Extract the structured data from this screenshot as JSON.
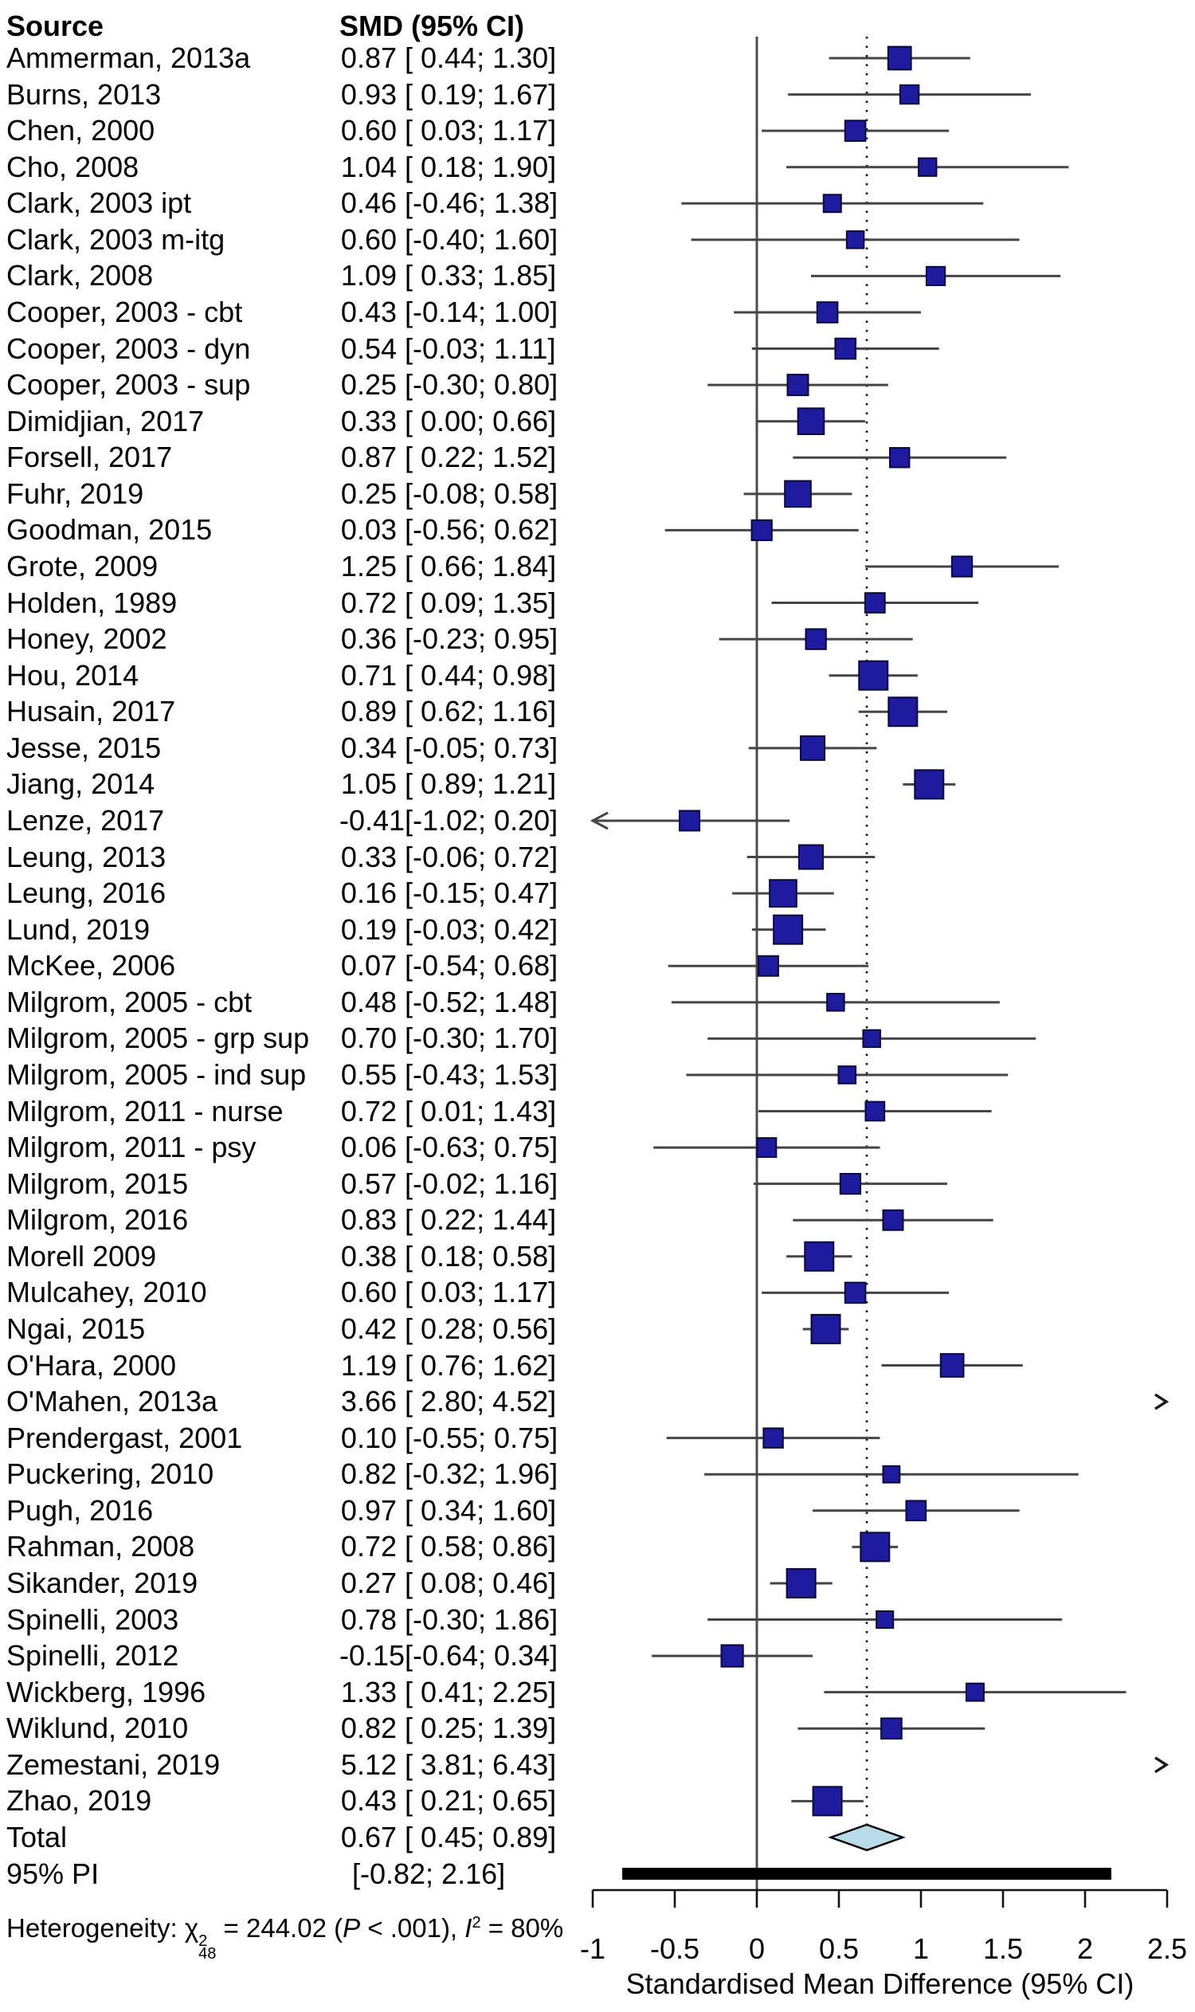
{
  "header": {
    "source": "Source",
    "smd": "SMD (95% CI)"
  },
  "heterogeneity": {
    "prefix": "Heterogeneity: ",
    "chi": "χ",
    "chi_sup": "2",
    "chi_sub": "48",
    "mid": " = 244.02 (",
    "p": "P",
    "p_tail": " < .001), ",
    "i": "I",
    "i_sup": "2",
    "i_tail": " = 80%"
  },
  "colors": {
    "background": "#ffffff",
    "square": "#1e1b9e",
    "square_border": "#0a0a3a",
    "ci_line": "#454545",
    "zero_line": "#4d4d4d",
    "dotted_line": "#111111",
    "diamond_fill": "#b8dbe9",
    "diamond_border": "#000000",
    "pi_bar": "#000000",
    "axis": "#111111",
    "text": "#000000"
  },
  "chart_data": {
    "type": "forest",
    "xlabel": "Standardised Mean Difference (95% CI)",
    "x_ticks": [
      -1,
      -0.5,
      0,
      0.5,
      1,
      1.5,
      2,
      2.5
    ],
    "x_tick_labels": [
      "-1",
      "-0.5",
      "0",
      "0.5",
      "1",
      "1.5",
      "2",
      "2.5"
    ],
    "x_range": [
      -1,
      2.5
    ],
    "dotted_reference": 0.67,
    "studies": [
      {
        "name": "Ammerman, 2013a",
        "est": 0.87,
        "lo": 0.44,
        "hi": 1.3
      },
      {
        "name": "Burns, 2013",
        "est": 0.93,
        "lo": 0.19,
        "hi": 1.67
      },
      {
        "name": "Chen, 2000",
        "est": 0.6,
        "lo": 0.03,
        "hi": 1.17
      },
      {
        "name": "Cho, 2008",
        "est": 1.04,
        "lo": 0.18,
        "hi": 1.9
      },
      {
        "name": "Clark, 2003 ipt",
        "est": 0.46,
        "lo": -0.46,
        "hi": 1.38
      },
      {
        "name": "Clark, 2003 m-itg",
        "est": 0.6,
        "lo": -0.4,
        "hi": 1.6
      },
      {
        "name": "Clark, 2008",
        "est": 1.09,
        "lo": 0.33,
        "hi": 1.85
      },
      {
        "name": "Cooper, 2003 - cbt",
        "est": 0.43,
        "lo": -0.14,
        "hi": 1.0
      },
      {
        "name": "Cooper, 2003 - dyn",
        "est": 0.54,
        "lo": -0.03,
        "hi": 1.11
      },
      {
        "name": "Cooper, 2003 - sup",
        "est": 0.25,
        "lo": -0.3,
        "hi": 0.8
      },
      {
        "name": "Dimidjian, 2017",
        "est": 0.33,
        "lo": 0.0,
        "hi": 0.66
      },
      {
        "name": "Forsell, 2017",
        "est": 0.87,
        "lo": 0.22,
        "hi": 1.52
      },
      {
        "name": "Fuhr, 2019",
        "est": 0.25,
        "lo": -0.08,
        "hi": 0.58
      },
      {
        "name": "Goodman, 2015",
        "est": 0.03,
        "lo": -0.56,
        "hi": 0.62
      },
      {
        "name": "Grote, 2009",
        "est": 1.25,
        "lo": 0.66,
        "hi": 1.84
      },
      {
        "name": "Holden, 1989",
        "est": 0.72,
        "lo": 0.09,
        "hi": 1.35
      },
      {
        "name": "Honey, 2002",
        "est": 0.36,
        "lo": -0.23,
        "hi": 0.95
      },
      {
        "name": "Hou, 2014",
        "est": 0.71,
        "lo": 0.44,
        "hi": 0.98
      },
      {
        "name": "Husain, 2017",
        "est": 0.89,
        "lo": 0.62,
        "hi": 1.16
      },
      {
        "name": "Jesse, 2015",
        "est": 0.34,
        "lo": -0.05,
        "hi": 0.73
      },
      {
        "name": "Jiang, 2014",
        "est": 1.05,
        "lo": 0.89,
        "hi": 1.21
      },
      {
        "name": "Lenze, 2017",
        "est": -0.41,
        "lo": -1.02,
        "hi": 0.2
      },
      {
        "name": "Leung, 2013",
        "est": 0.33,
        "lo": -0.06,
        "hi": 0.72
      },
      {
        "name": "Leung, 2016",
        "est": 0.16,
        "lo": -0.15,
        "hi": 0.47
      },
      {
        "name": "Lund, 2019",
        "est": 0.19,
        "lo": -0.03,
        "hi": 0.42
      },
      {
        "name": "McKee, 2006",
        "est": 0.07,
        "lo": -0.54,
        "hi": 0.68
      },
      {
        "name": "Milgrom, 2005 - cbt",
        "est": 0.48,
        "lo": -0.52,
        "hi": 1.48
      },
      {
        "name": "Milgrom, 2005 - grp sup",
        "est": 0.7,
        "lo": -0.3,
        "hi": 1.7
      },
      {
        "name": "Milgrom, 2005 - ind sup",
        "est": 0.55,
        "lo": -0.43,
        "hi": 1.53
      },
      {
        "name": "Milgrom, 2011 - nurse",
        "est": 0.72,
        "lo": 0.01,
        "hi": 1.43
      },
      {
        "name": "Milgrom, 2011 - psy",
        "est": 0.06,
        "lo": -0.63,
        "hi": 0.75
      },
      {
        "name": "Milgrom, 2015",
        "est": 0.57,
        "lo": -0.02,
        "hi": 1.16
      },
      {
        "name": "Milgrom, 2016",
        "est": 0.83,
        "lo": 0.22,
        "hi": 1.44
      },
      {
        "name": "Morell 2009",
        "est": 0.38,
        "lo": 0.18,
        "hi": 0.58
      },
      {
        "name": "Mulcahey, 2010",
        "est": 0.6,
        "lo": 0.03,
        "hi": 1.17
      },
      {
        "name": "Ngai, 2015",
        "est": 0.42,
        "lo": 0.28,
        "hi": 0.56
      },
      {
        "name": "O'Hara, 2000",
        "est": 1.19,
        "lo": 0.76,
        "hi": 1.62
      },
      {
        "name": "O'Mahen, 2013a",
        "est": 3.66,
        "lo": 2.8,
        "hi": 4.52
      },
      {
        "name": "Prendergast, 2001",
        "est": 0.1,
        "lo": -0.55,
        "hi": 0.75
      },
      {
        "name": "Puckering, 2010",
        "est": 0.82,
        "lo": -0.32,
        "hi": 1.96
      },
      {
        "name": "Pugh, 2016",
        "est": 0.97,
        "lo": 0.34,
        "hi": 1.6
      },
      {
        "name": "Rahman, 2008",
        "est": 0.72,
        "lo": 0.58,
        "hi": 0.86
      },
      {
        "name": "Sikander, 2019",
        "est": 0.27,
        "lo": 0.08,
        "hi": 0.46
      },
      {
        "name": "Spinelli, 2003",
        "est": 0.78,
        "lo": -0.3,
        "hi": 1.86
      },
      {
        "name": "Spinelli, 2012",
        "est": -0.15,
        "lo": -0.64,
        "hi": 0.34
      },
      {
        "name": "Wickberg, 1996",
        "est": 1.33,
        "lo": 0.41,
        "hi": 2.25
      },
      {
        "name": "Wiklund, 2010",
        "est": 0.82,
        "lo": 0.25,
        "hi": 1.39
      },
      {
        "name": "Zemestani, 2019",
        "est": 5.12,
        "lo": 3.81,
        "hi": 6.43
      },
      {
        "name": "Zhao, 2019",
        "est": 0.43,
        "lo": 0.21,
        "hi": 0.65
      }
    ],
    "total": {
      "label": "Total",
      "est": 0.67,
      "lo": 0.45,
      "hi": 0.89
    },
    "prediction_interval": {
      "label": "95% PI",
      "lo": -0.82,
      "hi": 2.16
    },
    "heterogeneity_text": "Heterogeneity: χ²₄₈ = 244.02 (P < .001), I² = 80%"
  }
}
